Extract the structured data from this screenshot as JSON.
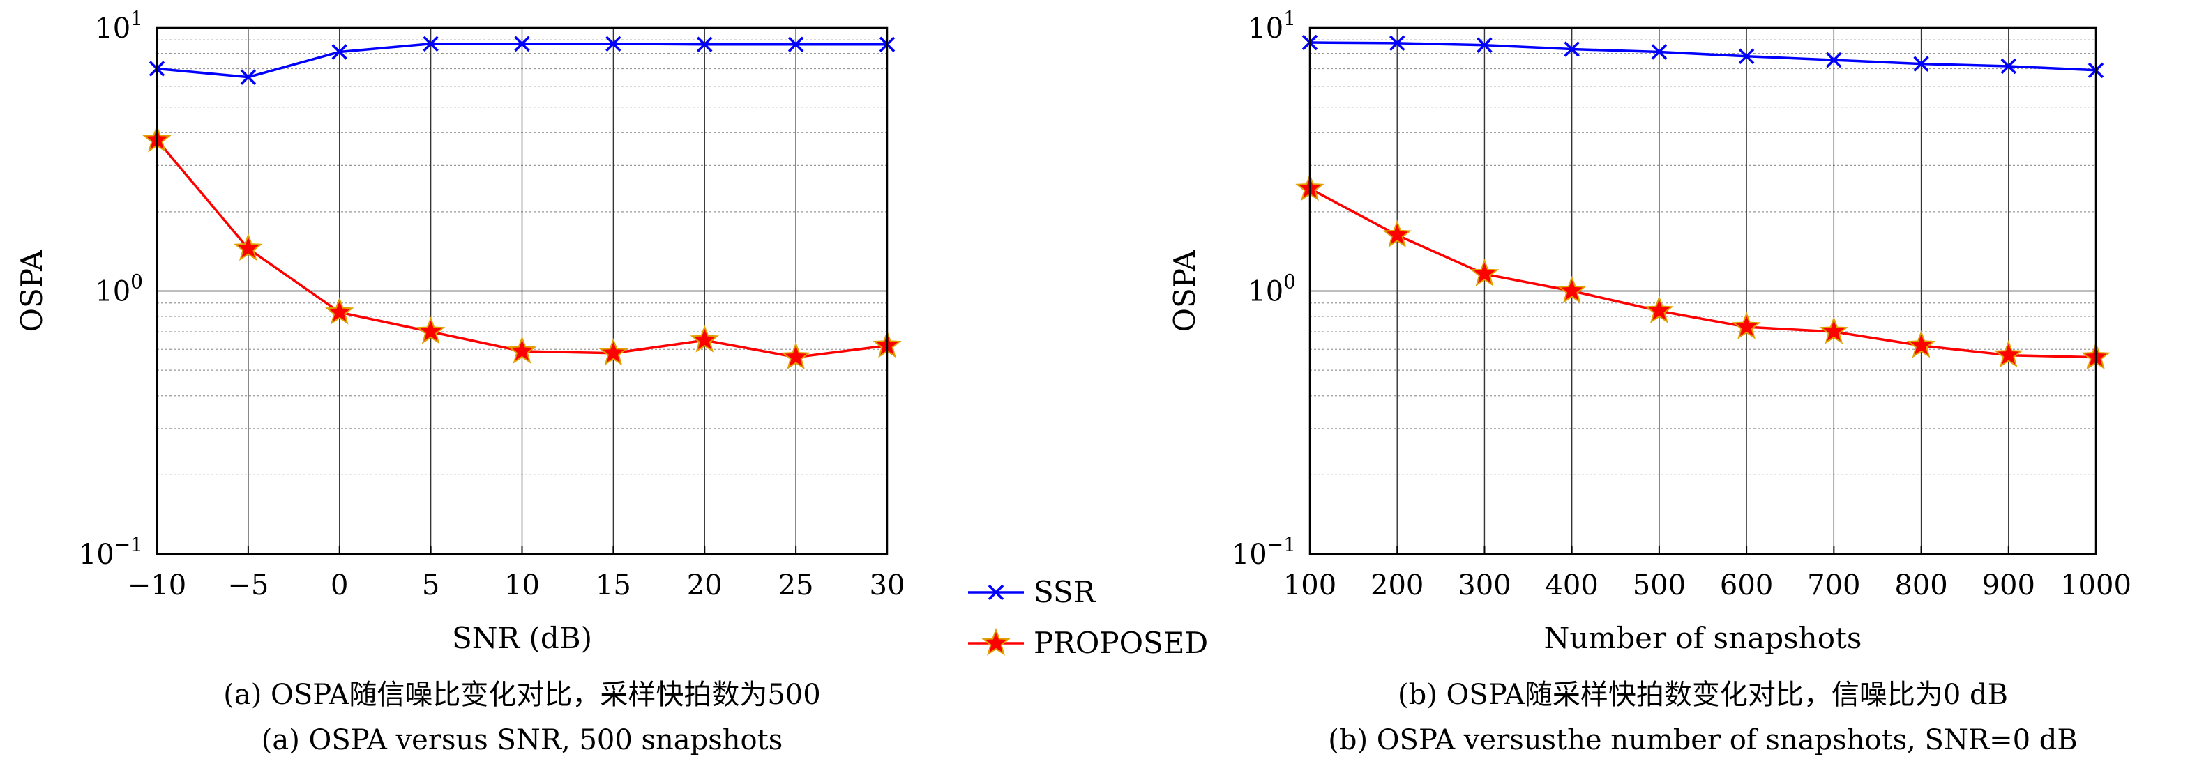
{
  "chart_data": [
    {
      "type": "line",
      "title": "",
      "xlabel": "SNR (dB)",
      "ylabel": "OSPA",
      "yscale": "log",
      "ylim": [
        0.1,
        10
      ],
      "xlim": [
        -10,
        30
      ],
      "grid": true,
      "x": [
        -10,
        -5,
        0,
        5,
        10,
        15,
        20,
        25,
        30
      ],
      "x_tick_labels": [
        "−10",
        "−5",
        "0",
        "5",
        "10",
        "15",
        "20",
        "25",
        "30"
      ],
      "series": [
        {
          "name": "SSR",
          "color": "#0000ff",
          "marker": "x",
          "values": [
            7.0,
            6.5,
            8.1,
            8.7,
            8.7,
            8.7,
            8.65,
            8.65,
            8.65
          ]
        },
        {
          "name": "PROPOSED",
          "color": "#ff0000",
          "marker": "star",
          "values": [
            3.75,
            1.45,
            0.83,
            0.7,
            0.59,
            0.58,
            0.65,
            0.56,
            0.62
          ]
        }
      ],
      "caption_cn": "(a) OSPA随信噪比变化对比，采样快拍数为500",
      "caption_en": "(a) OSPA versus SNR, 500 snapshots"
    },
    {
      "type": "line",
      "title": "",
      "xlabel": "Number of snapshots",
      "ylabel": "OSPA",
      "yscale": "log",
      "ylim": [
        0.1,
        10
      ],
      "xlim": [
        100,
        1000
      ],
      "grid": true,
      "x": [
        100,
        200,
        300,
        400,
        500,
        600,
        700,
        800,
        900,
        1000
      ],
      "x_tick_labels": [
        "100",
        "200",
        "300",
        "400",
        "500",
        "600",
        "700",
        "800",
        "900",
        "1000"
      ],
      "series": [
        {
          "name": "SSR",
          "color": "#0000ff",
          "marker": "x",
          "values": [
            8.8,
            8.75,
            8.6,
            8.3,
            8.1,
            7.8,
            7.55,
            7.3,
            7.15,
            6.9
          ]
        },
        {
          "name": "PROPOSED",
          "color": "#ff0000",
          "marker": "star",
          "values": [
            2.45,
            1.63,
            1.16,
            1.0,
            0.84,
            0.73,
            0.7,
            0.62,
            0.57,
            0.56
          ]
        }
      ],
      "caption_cn": "(b) OSPA随采样快拍数变化对比，信噪比为0 dB",
      "caption_en": "(b) OSPA versusthe number of snapshots, SNR=0 dB"
    }
  ],
  "y_tick_labels": [
    {
      "base": "10",
      "exp": "1"
    },
    {
      "base": "10",
      "exp": "0"
    },
    {
      "base": "10",
      "exp": "−1"
    }
  ],
  "legend": {
    "placement": "between panels",
    "items": [
      {
        "label": "SSR",
        "color": "#0000ff",
        "marker": "x"
      },
      {
        "label": "PROPOSED",
        "color": "#ff0000",
        "marker": "star"
      }
    ]
  }
}
